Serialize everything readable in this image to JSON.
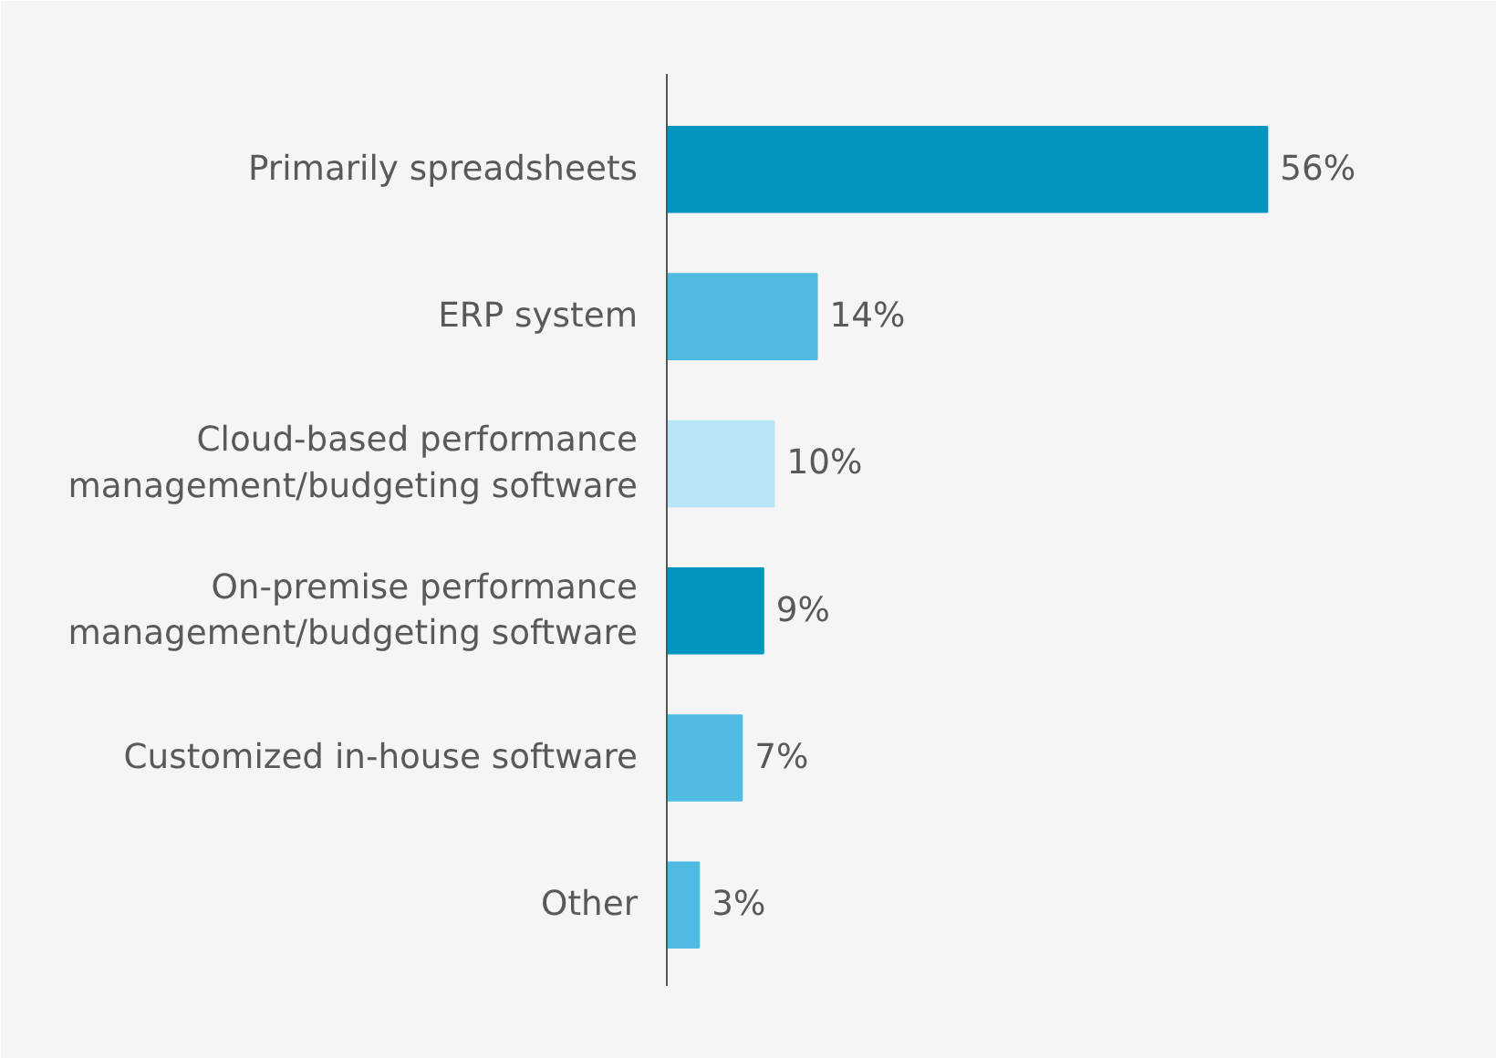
{
  "chart_data": {
    "type": "bar",
    "orientation": "horizontal",
    "categories": [
      "Primarily spreadsheets",
      "ERP system",
      "Cloud-based performance\nmanagement/budgeting software",
      "On-premise performance\nmanagement/budgeting software",
      "Customized in-house software",
      "Other"
    ],
    "values": [
      56,
      14,
      10,
      9,
      7,
      3
    ],
    "colors": [
      "#0295c0",
      "#4fbbe3",
      "#bae4f7",
      "#0295c0",
      "#4fbbe3",
      "#4fbbe3"
    ],
    "value_labels": [
      "56%",
      "14%",
      "10%",
      "9%",
      "7%",
      "3%"
    ],
    "grid": false
  }
}
